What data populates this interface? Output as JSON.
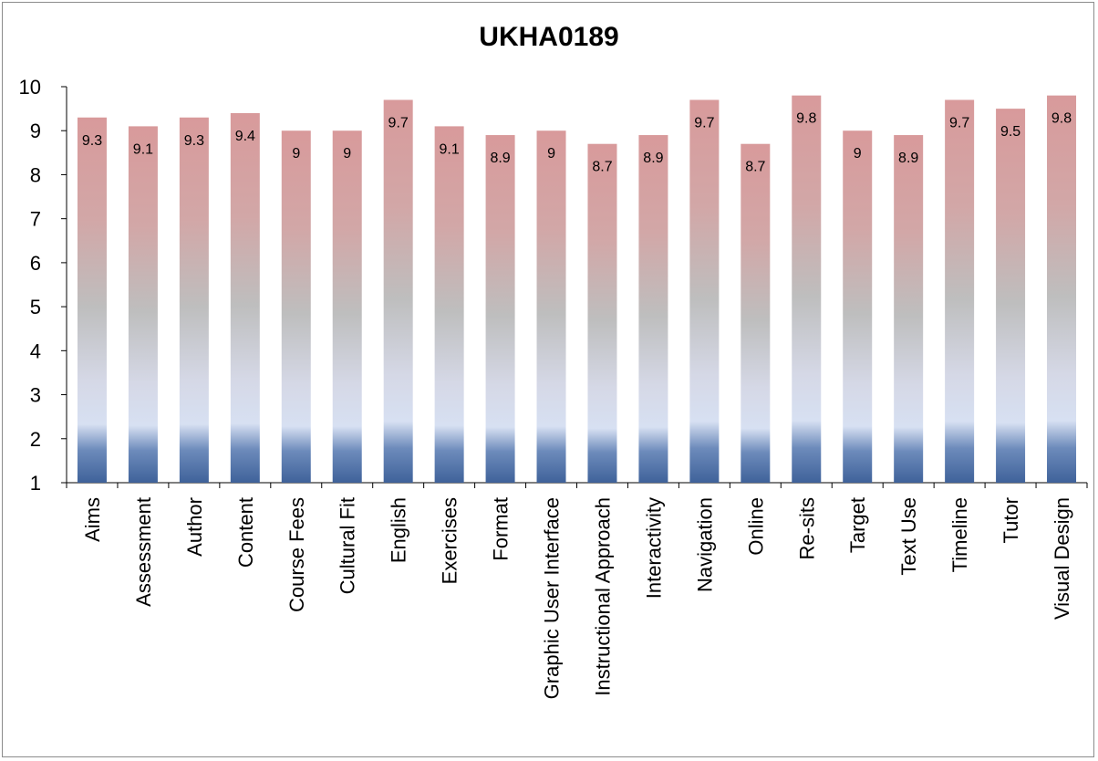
{
  "chart_data": {
    "type": "bar",
    "title": "UKHA0189",
    "xlabel": "",
    "ylabel": "",
    "ylim": [
      1,
      10
    ],
    "yticks": [
      1,
      2,
      3,
      4,
      5,
      6,
      7,
      8,
      9,
      10
    ],
    "grid": false,
    "legend": "none",
    "categories": [
      "Aims",
      "Assessment",
      "Author",
      "Content",
      "Course Fees",
      "Cultural Fit",
      "English",
      "Exercises",
      "Format",
      "Graphic User Interface",
      "Instructional Approach",
      "Interactivity",
      "Navigation",
      "Online",
      "Re-sits",
      "Target",
      "Text Use",
      "Timeline",
      "Tutor",
      "Visual Design"
    ],
    "values": [
      9.3,
      9.1,
      9.3,
      9.4,
      9,
      9,
      9.7,
      9.1,
      8.9,
      9,
      8.7,
      8.9,
      9.7,
      8.7,
      9.8,
      9,
      8.9,
      9.7,
      9.5,
      9.8
    ],
    "data_labels": [
      "9.3",
      "9.1",
      "9.3",
      "9.4",
      "9",
      "9",
      "9.7",
      "9.1",
      "8.9",
      "9",
      "8.7",
      "8.9",
      "9.7",
      "8.7",
      "9.8",
      "9",
      "8.9",
      "9.7",
      "9.5",
      "9.8"
    ],
    "colors": {
      "bar_top": "#d89a9b",
      "bar_mid": "#bfbfbf",
      "bar_light": "#d7e0f2",
      "bar_bottom": "#3f629a",
      "axis": "#000000"
    }
  }
}
